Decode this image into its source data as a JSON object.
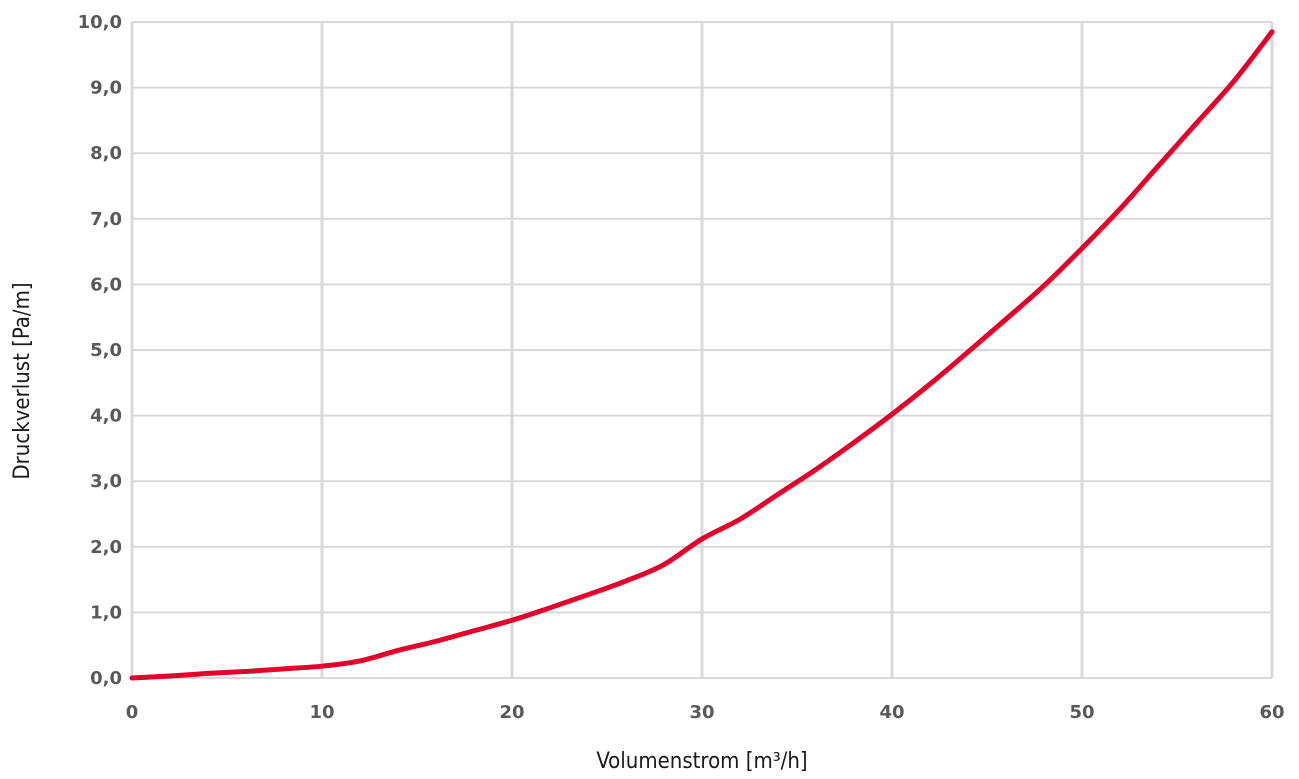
{
  "chart_data": {
    "type": "line",
    "xlabel": "Volumenstrom [m³/h]",
    "ylabel": "Druckverlust [Pa/m]",
    "xlim": [
      0,
      60
    ],
    "ylim": [
      0,
      10
    ],
    "x_ticks": [
      "0",
      "10",
      "20",
      "30",
      "40",
      "50",
      "60"
    ],
    "y_ticks": [
      "0,0",
      "1,0",
      "2,0",
      "3,0",
      "4,0",
      "5,0",
      "6,0",
      "7,0",
      "8,0",
      "9,0",
      "10,0"
    ],
    "grid": true,
    "legend": "none",
    "series": [
      {
        "color": "#e3002b",
        "x": [
          0,
          2,
          4,
          6,
          8,
          10,
          12,
          14,
          16,
          18,
          20,
          22,
          24,
          26,
          28,
          30,
          32,
          34,
          36,
          38,
          40,
          42,
          44,
          46,
          48,
          50,
          52,
          54,
          56,
          58,
          60
        ],
        "y": [
          0.0,
          0.03,
          0.07,
          0.1,
          0.14,
          0.18,
          0.26,
          0.42,
          0.56,
          0.72,
          0.88,
          1.07,
          1.27,
          1.48,
          1.73,
          2.12,
          2.42,
          2.8,
          3.18,
          3.59,
          4.02,
          4.48,
          4.97,
          5.47,
          5.98,
          6.55,
          7.15,
          7.8,
          8.45,
          9.1,
          9.85
        ]
      }
    ]
  }
}
